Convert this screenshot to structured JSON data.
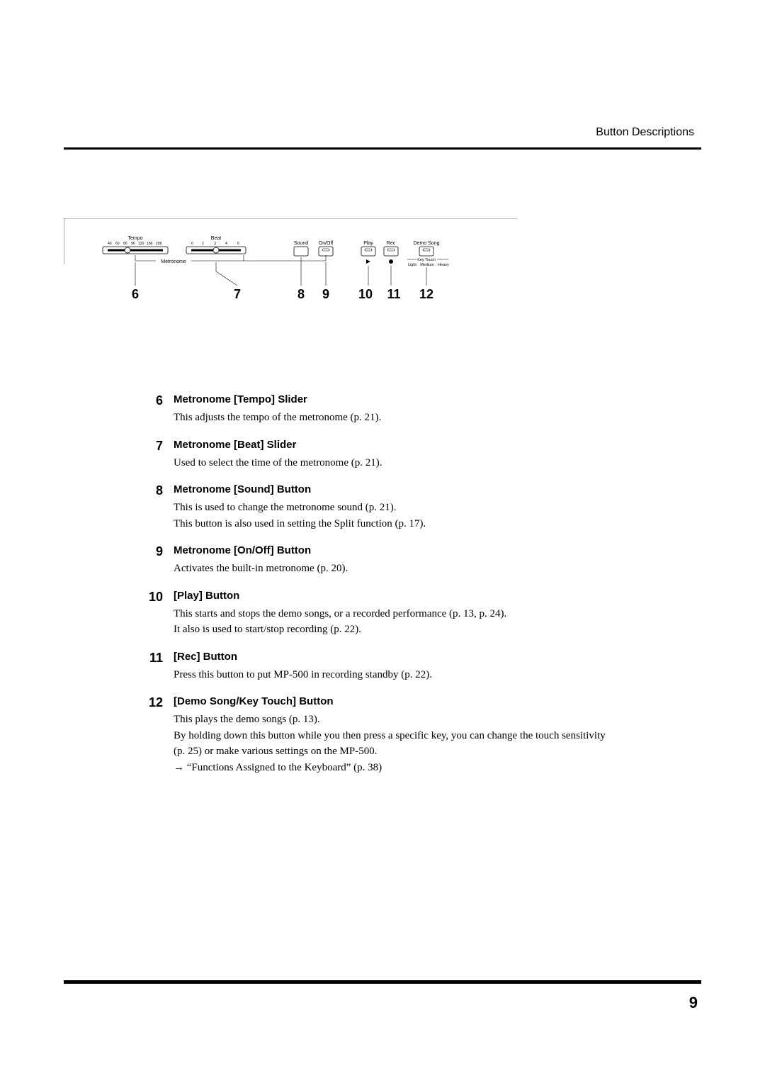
{
  "header": {
    "section_title": "Button Descriptions"
  },
  "diagram": {
    "tempo": {
      "label": "Tempo",
      "ticks": [
        "40",
        "60",
        "80",
        "96",
        "120",
        "168",
        "208"
      ]
    },
    "beat": {
      "label": "Beat",
      "ticks": [
        "0",
        "2",
        "3",
        "4",
        "6"
      ]
    },
    "metronome_label": "Metronome",
    "sound_label": "Sound",
    "onoff_label": "On/Off",
    "play_label": "Play",
    "rec_label": "Rec",
    "demo_label": "Demo Song",
    "keytouch": {
      "label": "Key Touch",
      "options": [
        "Light",
        "Medium",
        "Heavy"
      ]
    },
    "callout_numbers": [
      "6",
      "7",
      "8",
      "9",
      "10",
      "11",
      "12"
    ]
  },
  "items": [
    {
      "num": "6",
      "title": "Metronome [Tempo] Slider",
      "body": "This adjusts the tempo of the metronome (p. 21)."
    },
    {
      "num": "7",
      "title": "Metronome [Beat] Slider",
      "body": "Used to select the time of the metronome (p. 21)."
    },
    {
      "num": "8",
      "title": "Metronome [Sound] Button",
      "body": "This is used to change the metronome sound (p. 21).\nThis button is also used in setting the Split function (p. 17)."
    },
    {
      "num": "9",
      "title": "Metronome [On/Off] Button",
      "body": "Activates the built-in metronome (p. 20)."
    },
    {
      "num": "10",
      "title": "[Play] Button",
      "body": "This starts and stops the demo songs, or a recorded performance (p. 13, p. 24).\nIt also is used to start/stop recording (p. 22)."
    },
    {
      "num": "11",
      "title": "[Rec] Button",
      "body": "Press this button to put MP-500 in recording standby (p. 22)."
    },
    {
      "num": "12",
      "title": "[Demo Song/Key Touch] Button",
      "body": "This plays the demo songs (p. 13).\nBy holding down this button while you then press a specific key, you can change the touch sensitivity (p. 25) or make various settings on the MP-500.\n→ “Functions Assigned to the Keyboard” (p. 38)"
    }
  ],
  "page_number": "9",
  "styling": {
    "page_bg": "#ffffff",
    "text_color": "#000000",
    "rule_color": "#000000",
    "title_font": "Arial",
    "body_font": "Georgia",
    "callout_font": "Arial",
    "callout_weight": 900
  }
}
